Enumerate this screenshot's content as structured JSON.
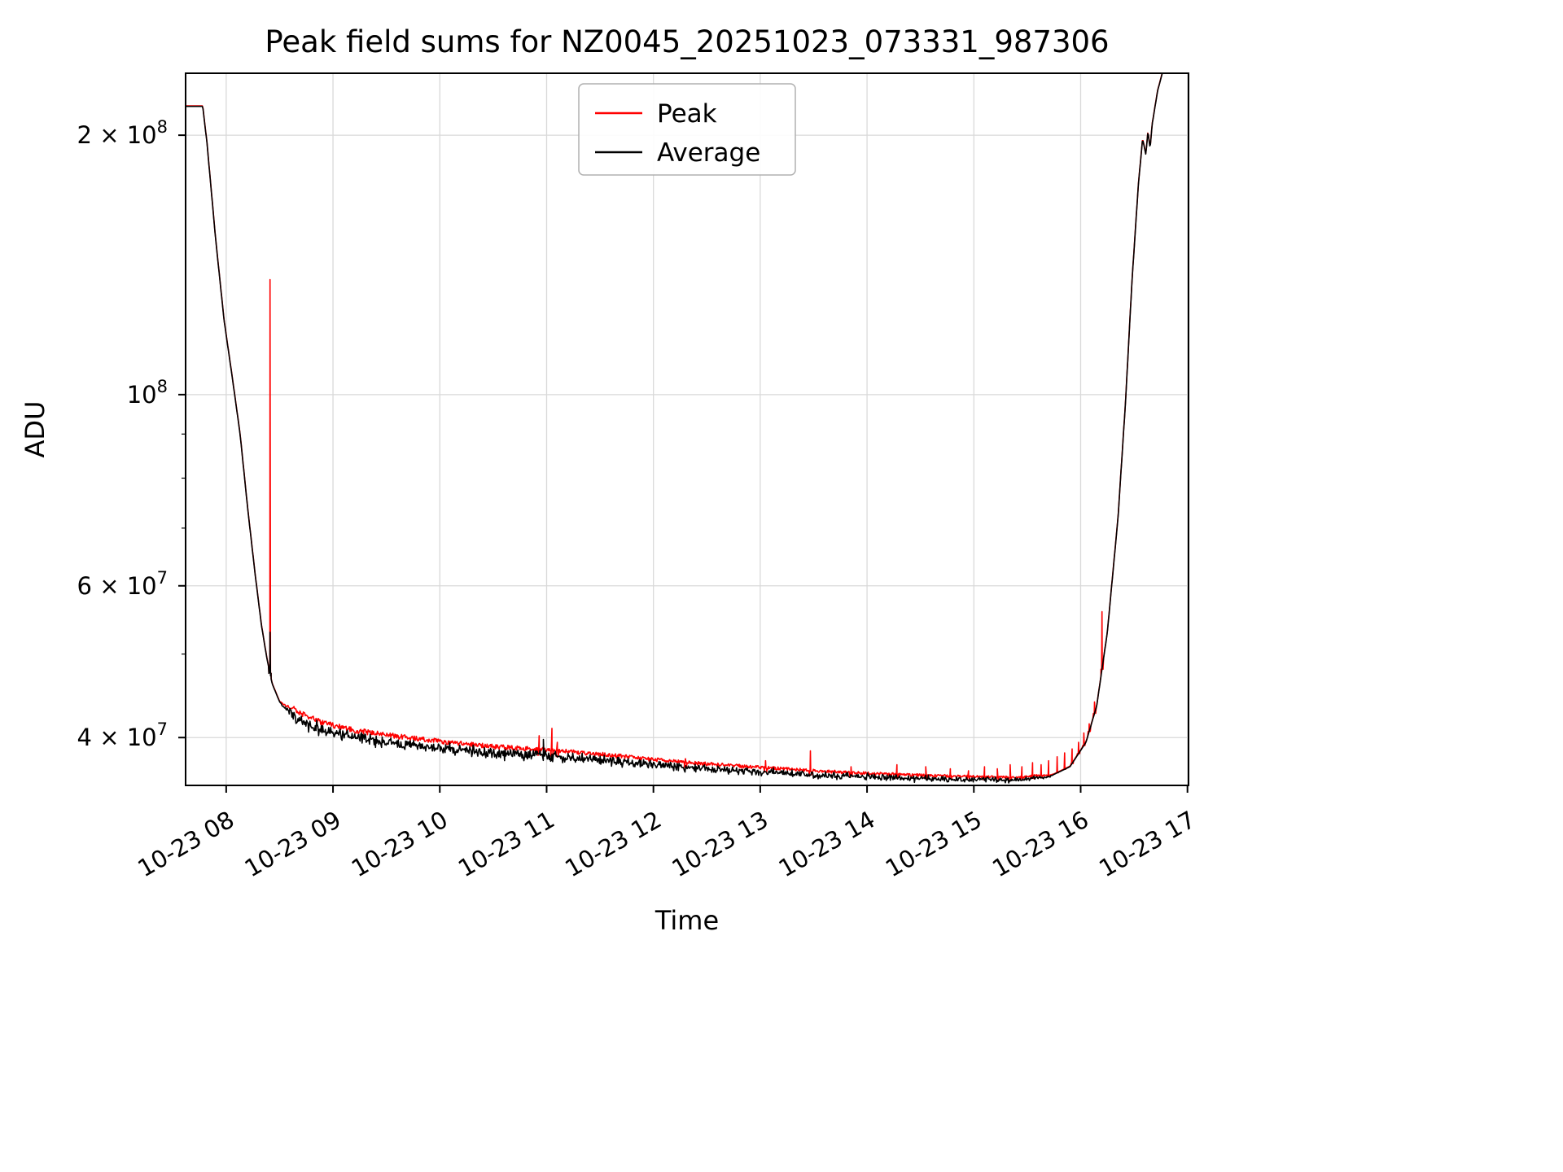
{
  "window": {
    "background": "#ffffff"
  },
  "chart_data": {
    "type": "line",
    "title": "Peak field sums for NZ0045_20251023_073331_987306",
    "xlabel": "Time",
    "ylabel": "ADU",
    "y_scale": "log",
    "grid": true,
    "x_domain_hours": [
      7.62,
      17.01
    ],
    "y_domain": [
      35200000.0,
      236000000.0
    ],
    "x_ticks": [
      {
        "hour": 8,
        "label": "10-23 08"
      },
      {
        "hour": 9,
        "label": "10-23 09"
      },
      {
        "hour": 10,
        "label": "10-23 10"
      },
      {
        "hour": 11,
        "label": "10-23 11"
      },
      {
        "hour": 12,
        "label": "10-23 12"
      },
      {
        "hour": 13,
        "label": "10-23 13"
      },
      {
        "hour": 14,
        "label": "10-23 14"
      },
      {
        "hour": 15,
        "label": "10-23 15"
      },
      {
        "hour": 16,
        "label": "10-23 16"
      },
      {
        "hour": 17,
        "label": "10-23 17"
      }
    ],
    "y_ticks_major": [
      {
        "value": 40000000.0,
        "label": "4 × 10^7"
      },
      {
        "value": 60000000.0,
        "label": "6 × 10^7"
      },
      {
        "value": 100000000.0,
        "label": "10^8"
      },
      {
        "value": 200000000.0,
        "label": "2 × 10^8"
      }
    ],
    "y_ticks_minor": [
      50000000.0,
      70000000.0,
      80000000.0,
      90000000.0
    ],
    "legend": {
      "position": "upper center",
      "entries": [
        {
          "label": "Peak",
          "color": "#ff0000"
        },
        {
          "label": "Average",
          "color": "#000000"
        }
      ]
    },
    "series": {
      "average_keypoints": [
        [
          7.62,
          216000000.0
        ],
        [
          7.78,
          216000000.0
        ],
        [
          7.82,
          196000000.0
        ],
        [
          7.9,
          152000000.0
        ],
        [
          7.98,
          122000000.0
        ],
        [
          8.06,
          104000000.0
        ],
        [
          8.13,
          90000000.0
        ],
        [
          8.2,
          74000000.0
        ],
        [
          8.27,
          62000000.0
        ],
        [
          8.33,
          54000000.0
        ],
        [
          8.38,
          49500000.0
        ],
        [
          8.43,
          46200000.0
        ],
        [
          8.5,
          44000000.0
        ],
        [
          8.58,
          42800000.0
        ],
        [
          8.7,
          41800000.0
        ],
        [
          8.9,
          40800000.0
        ],
        [
          9.2,
          40000000.0
        ],
        [
          9.6,
          39400000.0
        ],
        [
          10.0,
          38900000.0
        ],
        [
          10.5,
          38400000.0
        ],
        [
          11.0,
          38100000.0
        ],
        [
          11.5,
          37700000.0
        ],
        [
          12.0,
          37200000.0
        ],
        [
          12.5,
          36800000.0
        ],
        [
          13.0,
          36500000.0
        ],
        [
          13.5,
          36200000.0
        ],
        [
          14.0,
          36000000.0
        ],
        [
          14.5,
          35850000.0
        ],
        [
          15.0,
          35750000.0
        ],
        [
          15.4,
          35700000.0
        ],
        [
          15.7,
          36000000.0
        ],
        [
          15.9,
          37000000.0
        ],
        [
          16.05,
          39500000.0
        ],
        [
          16.15,
          43500000.0
        ],
        [
          16.25,
          53000000.0
        ],
        [
          16.35,
          72000000.0
        ],
        [
          16.42,
          98000000.0
        ],
        [
          16.48,
          135000000.0
        ],
        [
          16.54,
          175000000.0
        ],
        [
          16.58,
          198000000.0
        ],
        [
          16.61,
          190000000.0
        ],
        [
          16.63,
          202000000.0
        ],
        [
          16.65,
          193000000.0
        ],
        [
          16.67,
          206000000.0
        ],
        [
          16.72,
          225000000.0
        ],
        [
          16.78,
          240000000.0
        ],
        [
          17.01,
          245000000.0
        ]
      ],
      "average_spikes": [
        [
          8.41,
          53000000.0
        ],
        [
          10.97,
          39800000.0
        ]
      ],
      "peak_spikes": [
        [
          8.41,
          136000000.0
        ],
        [
          10.93,
          40200000.0
        ],
        [
          11.05,
          41000000.0
        ],
        [
          11.1,
          39500000.0
        ],
        [
          12.3,
          37800000.0
        ],
        [
          13.05,
          37600000.0
        ],
        [
          13.47,
          38600000.0
        ],
        [
          13.85,
          37000000.0
        ],
        [
          14.28,
          37200000.0
        ],
        [
          14.55,
          37000000.0
        ],
        [
          14.78,
          36800000.0
        ],
        [
          14.95,
          36600000.0
        ],
        [
          15.1,
          37000000.0
        ],
        [
          15.22,
          36800000.0
        ],
        [
          15.34,
          37200000.0
        ],
        [
          15.45,
          37000000.0
        ],
        [
          15.55,
          37400000.0
        ],
        [
          15.63,
          37200000.0
        ],
        [
          15.7,
          37600000.0
        ],
        [
          15.78,
          38000000.0
        ],
        [
          15.85,
          38400000.0
        ],
        [
          15.92,
          38800000.0
        ],
        [
          15.98,
          39500000.0
        ],
        [
          16.03,
          40500000.0
        ],
        [
          16.08,
          41500000.0
        ],
        [
          16.13,
          44000000.0
        ],
        [
          16.2,
          56000000.0
        ]
      ],
      "noise": {
        "region": [
          8.5,
          15.75
        ],
        "avg_amp_start": 0.017,
        "avg_amp_end": 0.006,
        "peak_offset_start": 0.013,
        "peak_offset_end": 0.004,
        "seed": 42
      }
    },
    "colors": {
      "peak": "#ff0000",
      "average": "#000000",
      "grid": "#d9d9d9",
      "axis": "#000000",
      "background": "#ffffff"
    }
  }
}
